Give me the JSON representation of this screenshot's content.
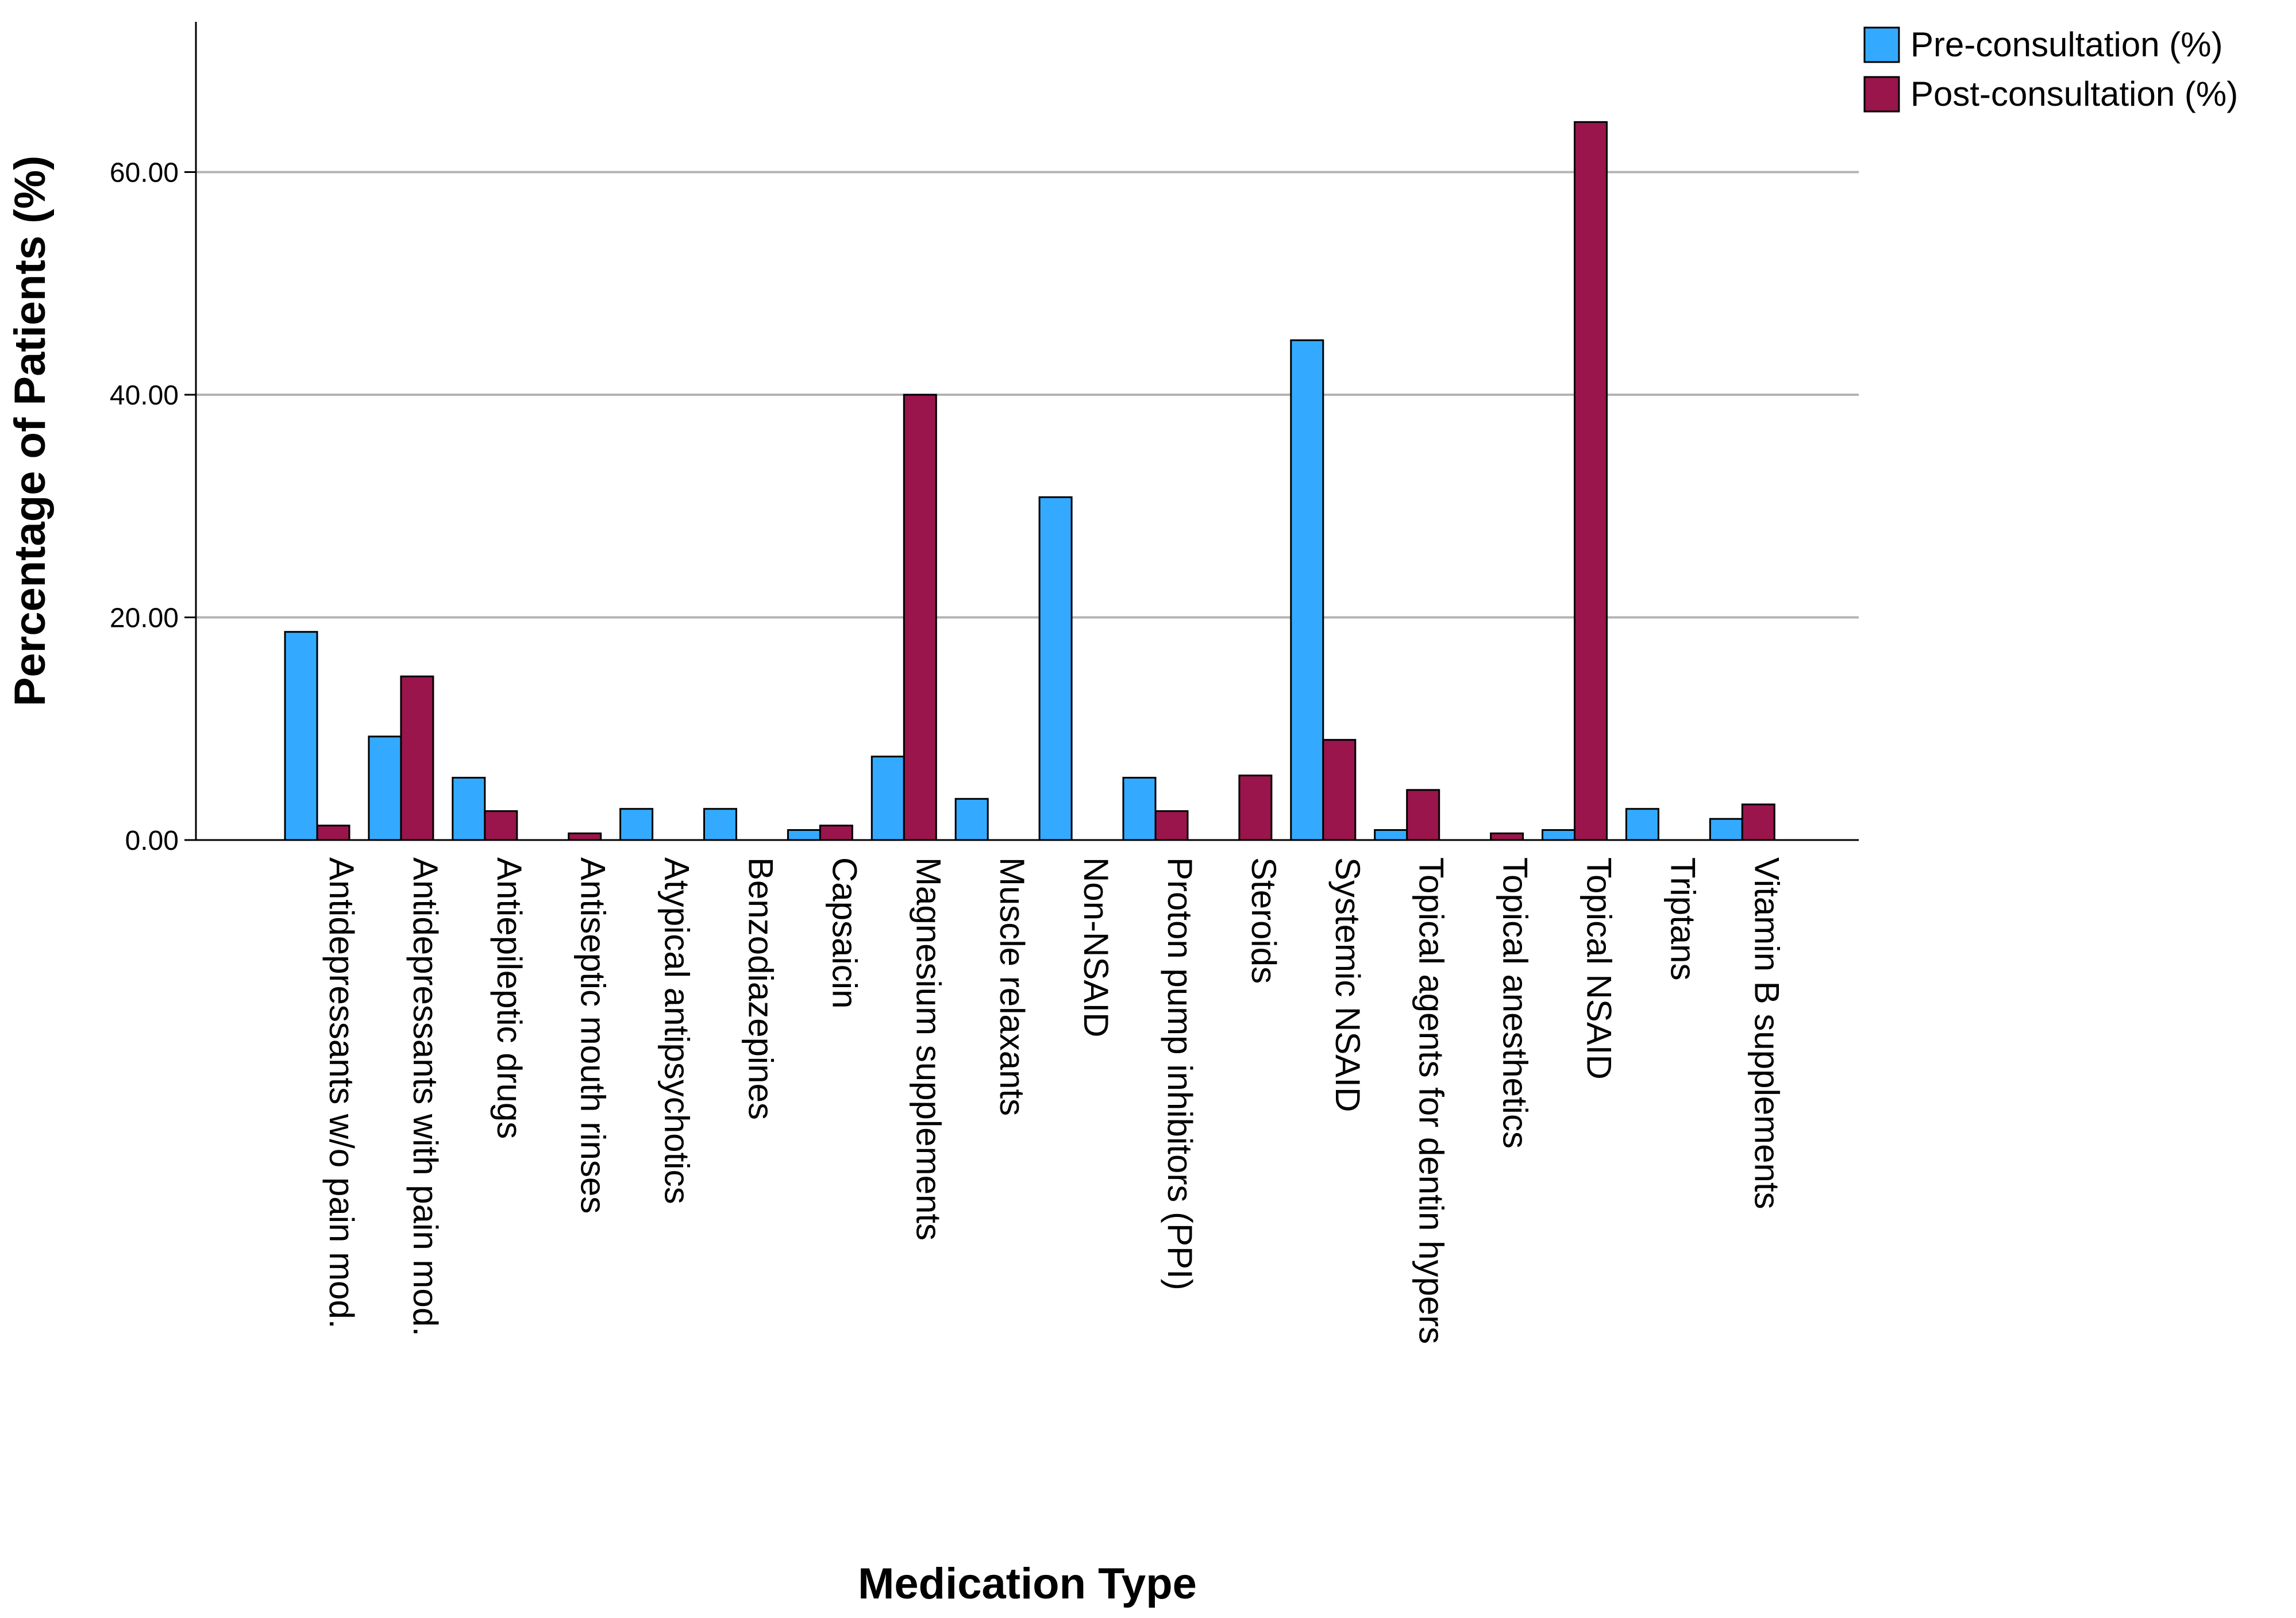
{
  "chart_data": {
    "type": "bar",
    "title": "",
    "xlabel": "Medication Type",
    "ylabel": "Percentage of Patients (%)",
    "ylim": [
      0,
      73.5
    ],
    "yticks": [
      {
        "value": 0,
        "label": "0.00"
      },
      {
        "value": 20,
        "label": "20.00"
      },
      {
        "value": 40,
        "label": "40.00"
      },
      {
        "value": 60,
        "label": "60.00"
      }
    ],
    "grid": "horizontal",
    "legend_position": "top-right",
    "categories": [
      "Antidepressants w/o pain mod.",
      "Antidepressants with pain mod.",
      "Antiepileptic drugs",
      "Antiseptic mouth rinses",
      "Atypical antipsychotics",
      "Benzodiazepines",
      "Capsaicin",
      "Magnesium supplements",
      "Muscle relaxants",
      "Non-NSAID",
      "Proton pump inhibitors (PPI)",
      "Steroids",
      "Systemic NSAID",
      "Topical agents for dentin hypers",
      "Topical anesthetics",
      "Topical NSAID",
      "Triptans",
      "Vitamin B supplements"
    ],
    "series": [
      {
        "name": "Pre-consultation (%)",
        "color": "#33aaff",
        "values": [
          18.7,
          9.3,
          5.6,
          0,
          2.8,
          2.8,
          0.9,
          7.5,
          3.7,
          30.8,
          5.6,
          0,
          44.9,
          0.9,
          0,
          0.9,
          2.8,
          1.9
        ]
      },
      {
        "name": "Post-consultation (%)",
        "color": "#99154b",
        "values": [
          1.3,
          14.7,
          2.6,
          0.6,
          0,
          0,
          1.3,
          40.0,
          0,
          0,
          2.6,
          5.8,
          9.0,
          4.5,
          0.6,
          64.5,
          0,
          3.2
        ]
      }
    ]
  }
}
